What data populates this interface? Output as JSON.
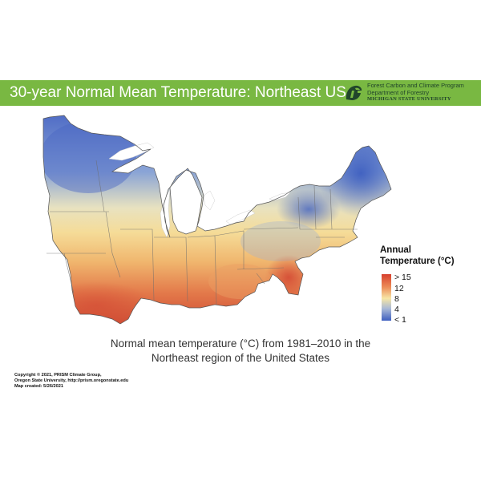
{
  "banner": {
    "title": "30-year Normal Mean Temperature: Northeast US",
    "background_color": "#79b842",
    "logo": {
      "icon": "spartan-helmet-icon",
      "line1": "Forest Carbon and Climate Program",
      "line2": "Department of Forestry",
      "line3": "MICHIGAN STATE UNIVERSITY",
      "color": "#21452b"
    }
  },
  "map": {
    "type": "choropleth-raster",
    "region": "Northeast US",
    "variable": "Annual normal mean temperature (°C)",
    "period": "1981–2010",
    "color_scale": {
      "min_color": "#3e5fc0",
      "mid_color": "#f7e6a6",
      "max_color": "#d7402f"
    }
  },
  "legend": {
    "title_line1": "Annual",
    "title_line2": "Temperature (°C)",
    "labels": [
      "> 15",
      "12",
      "8",
      "4",
      "< 1"
    ],
    "values": [
      15,
      12,
      8,
      4,
      1
    ]
  },
  "caption": {
    "line1": "Normal mean temperature (°C) from 1981–2010 in the",
    "line2": "Northeast region of the United States"
  },
  "copyright": {
    "line1": "Copyright © 2021, PRISM Climate Group,",
    "line2": "Oregon State University, http://prism.oregonstate.edu",
    "line3": "Map created: 5/26/2021"
  }
}
